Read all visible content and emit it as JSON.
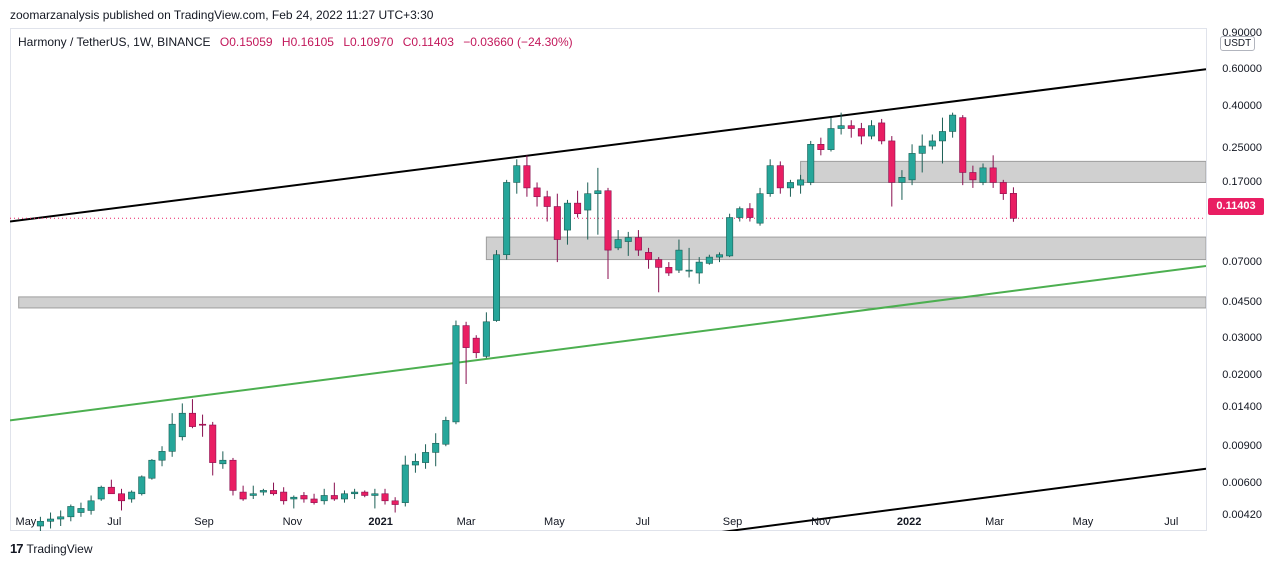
{
  "header": {
    "published_by": "zoomarzanalysis published on TradingView.com, Feb 24, 2022 11:27 UTC+3:30"
  },
  "legend": {
    "symbol": "Harmony / TetherUS, 1W, BINANCE",
    "open": "O0.15059",
    "high": "H0.16105",
    "low": "L0.10970",
    "close": "C0.11403",
    "change": "−0.03660 (−24.30%)"
  },
  "price_axis": {
    "unit": "USDT",
    "ticks": [
      "0.90000",
      "0.60000",
      "0.40000",
      "0.25000",
      "0.17000",
      "0.07000",
      "0.04500",
      "0.03000",
      "0.02000",
      "0.01400",
      "0.00900",
      "0.00600",
      "0.00420"
    ],
    "last_price": "0.11403"
  },
  "time_axis": {
    "ticks": [
      {
        "label": "May",
        "bold": false
      },
      {
        "label": "Jul",
        "bold": false
      },
      {
        "label": "Sep",
        "bold": false
      },
      {
        "label": "Nov",
        "bold": false
      },
      {
        "label": "2021",
        "bold": true
      },
      {
        "label": "Mar",
        "bold": false
      },
      {
        "label": "May",
        "bold": false
      },
      {
        "label": "Jul",
        "bold": false
      },
      {
        "label": "Sep",
        "bold": false
      },
      {
        "label": "Nov",
        "bold": false
      },
      {
        "label": "2022",
        "bold": true
      },
      {
        "label": "Mar",
        "bold": false
      },
      {
        "label": "May",
        "bold": false
      },
      {
        "label": "Jul",
        "bold": false
      }
    ]
  },
  "brand": {
    "name": "TradingView"
  },
  "colors": {
    "up": "#26a69a",
    "down": "#e91e63",
    "zone": "#c8c8c8",
    "support_line": "#4caf50",
    "channel": "#000000",
    "last_price": "#e91e63"
  },
  "chart_data": {
    "type": "candlestick",
    "scale": "log",
    "ylim": [
      0.0035,
      0.95
    ],
    "xlim": [
      "2020-04-20",
      "2022-07-25"
    ],
    "series": [
      {
        "values": [
          {
            "d": "2020-05-11",
            "o": 0.0037,
            "h": 0.0041,
            "l": 0.0035,
            "c": 0.0039
          },
          {
            "d": "2020-05-18",
            "o": 0.0039,
            "h": 0.0043,
            "l": 0.0036,
            "c": 0.004
          },
          {
            "d": "2020-05-25",
            "o": 0.004,
            "h": 0.0044,
            "l": 0.0037,
            "c": 0.0041
          },
          {
            "d": "2020-06-01",
            "o": 0.0041,
            "h": 0.0047,
            "l": 0.0039,
            "c": 0.0046
          },
          {
            "d": "2020-06-08",
            "o": 0.0043,
            "h": 0.0048,
            "l": 0.0041,
            "c": 0.0045
          },
          {
            "d": "2020-06-15",
            "o": 0.0044,
            "h": 0.0052,
            "l": 0.0042,
            "c": 0.0049
          },
          {
            "d": "2020-06-22",
            "o": 0.005,
            "h": 0.0058,
            "l": 0.0049,
            "c": 0.0057
          },
          {
            "d": "2020-06-29",
            "o": 0.0057,
            "h": 0.0062,
            "l": 0.0053,
            "c": 0.0053
          },
          {
            "d": "2020-07-06",
            "o": 0.0053,
            "h": 0.0056,
            "l": 0.0044,
            "c": 0.0049
          },
          {
            "d": "2020-07-13",
            "o": 0.005,
            "h": 0.0055,
            "l": 0.0048,
            "c": 0.0054
          },
          {
            "d": "2020-07-20",
            "o": 0.0053,
            "h": 0.0065,
            "l": 0.0052,
            "c": 0.0064
          },
          {
            "d": "2020-07-27",
            "o": 0.0063,
            "h": 0.0078,
            "l": 0.0062,
            "c": 0.0077
          },
          {
            "d": "2020-08-03",
            "o": 0.0077,
            "h": 0.009,
            "l": 0.0072,
            "c": 0.0085
          },
          {
            "d": "2020-08-10",
            "o": 0.0085,
            "h": 0.013,
            "l": 0.008,
            "c": 0.0115
          },
          {
            "d": "2020-08-17",
            "o": 0.01,
            "h": 0.0145,
            "l": 0.0096,
            "c": 0.013
          },
          {
            "d": "2020-08-24",
            "o": 0.013,
            "h": 0.0152,
            "l": 0.011,
            "c": 0.0112
          },
          {
            "d": "2020-08-31",
            "o": 0.0115,
            "h": 0.0128,
            "l": 0.01,
            "c": 0.0114
          },
          {
            "d": "2020-09-07",
            "o": 0.0114,
            "h": 0.0118,
            "l": 0.0065,
            "c": 0.0075
          },
          {
            "d": "2020-09-14",
            "o": 0.0074,
            "h": 0.0085,
            "l": 0.007,
            "c": 0.0077
          },
          {
            "d": "2020-09-21",
            "o": 0.0077,
            "h": 0.0079,
            "l": 0.0052,
            "c": 0.0055
          },
          {
            "d": "2020-09-28",
            "o": 0.0054,
            "h": 0.0058,
            "l": 0.0049,
            "c": 0.005
          },
          {
            "d": "2020-10-05",
            "o": 0.0052,
            "h": 0.0058,
            "l": 0.005,
            "c": 0.0053
          },
          {
            "d": "2020-10-12",
            "o": 0.0054,
            "h": 0.0056,
            "l": 0.0052,
            "c": 0.0055
          },
          {
            "d": "2020-10-19",
            "o": 0.0055,
            "h": 0.006,
            "l": 0.0052,
            "c": 0.0053
          },
          {
            "d": "2020-10-26",
            "o": 0.0054,
            "h": 0.0057,
            "l": 0.0047,
            "c": 0.0049
          },
          {
            "d": "2020-11-02",
            "o": 0.005,
            "h": 0.0052,
            "l": 0.0045,
            "c": 0.0051
          },
          {
            "d": "2020-11-09",
            "o": 0.0052,
            "h": 0.0054,
            "l": 0.0048,
            "c": 0.005
          },
          {
            "d": "2020-11-16",
            "o": 0.005,
            "h": 0.0053,
            "l": 0.0047,
            "c": 0.0048
          },
          {
            "d": "2020-11-23",
            "o": 0.0049,
            "h": 0.0056,
            "l": 0.0047,
            "c": 0.0052
          },
          {
            "d": "2020-11-30",
            "o": 0.0052,
            "h": 0.006,
            "l": 0.0049,
            "c": 0.005
          },
          {
            "d": "2020-12-07",
            "o": 0.005,
            "h": 0.0055,
            "l": 0.0048,
            "c": 0.0053
          },
          {
            "d": "2020-12-14",
            "o": 0.0053,
            "h": 0.0056,
            "l": 0.005,
            "c": 0.0054
          },
          {
            "d": "2020-12-21",
            "o": 0.0054,
            "h": 0.0055,
            "l": 0.0051,
            "c": 0.0052
          },
          {
            "d": "2020-12-28",
            "o": 0.0052,
            "h": 0.0056,
            "l": 0.0045,
            "c": 0.0053
          },
          {
            "d": "2021-01-04",
            "o": 0.0053,
            "h": 0.0056,
            "l": 0.0047,
            "c": 0.0049
          },
          {
            "d": "2021-01-11",
            "o": 0.0049,
            "h": 0.0051,
            "l": 0.0043,
            "c": 0.0047
          },
          {
            "d": "2021-01-18",
            "o": 0.0048,
            "h": 0.0081,
            "l": 0.0046,
            "c": 0.0073
          },
          {
            "d": "2021-01-25",
            "o": 0.0073,
            "h": 0.0083,
            "l": 0.0067,
            "c": 0.0076
          },
          {
            "d": "2021-02-01",
            "o": 0.0075,
            "h": 0.0092,
            "l": 0.007,
            "c": 0.0084
          },
          {
            "d": "2021-02-08",
            "o": 0.0084,
            "h": 0.0104,
            "l": 0.0072,
            "c": 0.0093
          },
          {
            "d": "2021-02-15",
            "o": 0.0092,
            "h": 0.0125,
            "l": 0.009,
            "c": 0.012
          },
          {
            "d": "2021-02-22",
            "o": 0.0118,
            "h": 0.0365,
            "l": 0.0115,
            "c": 0.0345
          },
          {
            "d": "2021-03-01",
            "o": 0.0345,
            "h": 0.036,
            "l": 0.018,
            "c": 0.027
          },
          {
            "d": "2021-03-08",
            "o": 0.03,
            "h": 0.031,
            "l": 0.024,
            "c": 0.0255
          },
          {
            "d": "2021-03-15",
            "o": 0.0245,
            "h": 0.04,
            "l": 0.024,
            "c": 0.036
          },
          {
            "d": "2021-03-22",
            "o": 0.0365,
            "h": 0.08,
            "l": 0.036,
            "c": 0.076
          },
          {
            "d": "2021-03-29",
            "o": 0.076,
            "h": 0.175,
            "l": 0.072,
            "c": 0.17
          },
          {
            "d": "2021-04-05",
            "o": 0.17,
            "h": 0.22,
            "l": 0.15,
            "c": 0.205
          },
          {
            "d": "2021-04-12",
            "o": 0.205,
            "h": 0.23,
            "l": 0.145,
            "c": 0.16
          },
          {
            "d": "2021-04-19",
            "o": 0.16,
            "h": 0.17,
            "l": 0.13,
            "c": 0.145
          },
          {
            "d": "2021-04-26",
            "o": 0.145,
            "h": 0.155,
            "l": 0.11,
            "c": 0.13
          },
          {
            "d": "2021-05-03",
            "o": 0.13,
            "h": 0.15,
            "l": 0.07,
            "c": 0.09
          },
          {
            "d": "2021-05-10",
            "o": 0.1,
            "h": 0.14,
            "l": 0.085,
            "c": 0.135
          },
          {
            "d": "2021-05-17",
            "o": 0.135,
            "h": 0.155,
            "l": 0.115,
            "c": 0.12
          },
          {
            "d": "2021-05-24",
            "o": 0.125,
            "h": 0.17,
            "l": 0.09,
            "c": 0.15
          },
          {
            "d": "2021-05-31",
            "o": 0.15,
            "h": 0.2,
            "l": 0.095,
            "c": 0.155
          },
          {
            "d": "2021-06-07",
            "o": 0.155,
            "h": 0.16,
            "l": 0.058,
            "c": 0.08
          },
          {
            "d": "2021-06-14",
            "o": 0.082,
            "h": 0.1,
            "l": 0.08,
            "c": 0.09
          },
          {
            "d": "2021-06-21",
            "o": 0.088,
            "h": 0.098,
            "l": 0.075,
            "c": 0.092
          },
          {
            "d": "2021-06-28",
            "o": 0.092,
            "h": 0.1,
            "l": 0.075,
            "c": 0.08
          },
          {
            "d": "2021-07-05",
            "o": 0.078,
            "h": 0.082,
            "l": 0.065,
            "c": 0.072
          },
          {
            "d": "2021-07-12",
            "o": 0.072,
            "h": 0.074,
            "l": 0.05,
            "c": 0.066
          },
          {
            "d": "2021-07-19",
            "o": 0.066,
            "h": 0.07,
            "l": 0.06,
            "c": 0.062
          },
          {
            "d": "2021-07-26",
            "o": 0.064,
            "h": 0.09,
            "l": 0.062,
            "c": 0.08
          },
          {
            "d": "2021-08-02",
            "o": 0.064,
            "h": 0.082,
            "l": 0.059,
            "c": 0.064
          },
          {
            "d": "2021-08-09",
            "o": 0.062,
            "h": 0.074,
            "l": 0.055,
            "c": 0.07
          },
          {
            "d": "2021-08-16",
            "o": 0.069,
            "h": 0.076,
            "l": 0.068,
            "c": 0.074
          },
          {
            "d": "2021-08-23",
            "o": 0.074,
            "h": 0.078,
            "l": 0.07,
            "c": 0.076
          },
          {
            "d": "2021-08-30",
            "o": 0.075,
            "h": 0.12,
            "l": 0.074,
            "c": 0.115
          },
          {
            "d": "2021-09-06",
            "o": 0.115,
            "h": 0.13,
            "l": 0.11,
            "c": 0.127
          },
          {
            "d": "2021-09-13",
            "o": 0.127,
            "h": 0.135,
            "l": 0.11,
            "c": 0.115
          },
          {
            "d": "2021-09-20",
            "o": 0.108,
            "h": 0.16,
            "l": 0.105,
            "c": 0.15
          },
          {
            "d": "2021-09-27",
            "o": 0.15,
            "h": 0.22,
            "l": 0.145,
            "c": 0.205
          },
          {
            "d": "2021-10-04",
            "o": 0.205,
            "h": 0.215,
            "l": 0.15,
            "c": 0.16
          },
          {
            "d": "2021-10-11",
            "o": 0.16,
            "h": 0.175,
            "l": 0.145,
            "c": 0.17
          },
          {
            "d": "2021-10-18",
            "o": 0.165,
            "h": 0.185,
            "l": 0.15,
            "c": 0.175
          },
          {
            "d": "2021-10-25",
            "o": 0.17,
            "h": 0.27,
            "l": 0.165,
            "c": 0.26
          },
          {
            "d": "2021-11-01",
            "o": 0.26,
            "h": 0.28,
            "l": 0.23,
            "c": 0.245
          },
          {
            "d": "2021-11-08",
            "o": 0.245,
            "h": 0.35,
            "l": 0.24,
            "c": 0.31
          },
          {
            "d": "2021-11-15",
            "o": 0.31,
            "h": 0.37,
            "l": 0.29,
            "c": 0.32
          },
          {
            "d": "2021-11-22",
            "o": 0.32,
            "h": 0.34,
            "l": 0.28,
            "c": 0.31
          },
          {
            "d": "2021-11-29",
            "o": 0.31,
            "h": 0.33,
            "l": 0.26,
            "c": 0.285
          },
          {
            "d": "2021-12-06",
            "o": 0.285,
            "h": 0.34,
            "l": 0.275,
            "c": 0.32
          },
          {
            "d": "2021-12-13",
            "o": 0.33,
            "h": 0.345,
            "l": 0.26,
            "c": 0.27
          },
          {
            "d": "2021-12-20",
            "o": 0.27,
            "h": 0.285,
            "l": 0.13,
            "c": 0.17
          },
          {
            "d": "2021-12-27",
            "o": 0.17,
            "h": 0.195,
            "l": 0.14,
            "c": 0.18
          },
          {
            "d": "2022-01-03",
            "o": 0.175,
            "h": 0.26,
            "l": 0.165,
            "c": 0.235
          },
          {
            "d": "2022-01-10",
            "o": 0.235,
            "h": 0.29,
            "l": 0.19,
            "c": 0.255
          },
          {
            "d": "2022-01-17",
            "o": 0.255,
            "h": 0.29,
            "l": 0.245,
            "c": 0.27
          },
          {
            "d": "2022-01-24",
            "o": 0.27,
            "h": 0.35,
            "l": 0.21,
            "c": 0.3
          },
          {
            "d": "2022-01-31",
            "o": 0.3,
            "h": 0.37,
            "l": 0.28,
            "c": 0.36
          },
          {
            "d": "2022-02-07",
            "o": 0.35,
            "h": 0.36,
            "l": 0.165,
            "c": 0.19
          },
          {
            "d": "2022-02-14",
            "o": 0.19,
            "h": 0.205,
            "l": 0.16,
            "c": 0.175
          },
          {
            "d": "2022-02-21",
            "o": 0.17,
            "h": 0.21,
            "l": 0.165,
            "c": 0.2
          },
          {
            "d": "2022-02-28",
            "o": 0.2,
            "h": 0.23,
            "l": 0.16,
            "c": 0.17
          },
          {
            "d": "2022-03-07",
            "o": 0.17,
            "h": 0.175,
            "l": 0.14,
            "c": 0.15
          },
          {
            "d": "2022-03-14",
            "o": 0.15059,
            "h": 0.16105,
            "l": 0.1097,
            "c": 0.11403
          }
        ]
      }
    ],
    "zones": [
      {
        "from": "2020-04-26",
        "to": "2022-07-25",
        "low": 0.042,
        "high": 0.0475
      },
      {
        "from": "2021-03-15",
        "to": "2022-07-25",
        "low": 0.072,
        "high": 0.0925
      },
      {
        "from": "2021-10-18",
        "to": "2022-07-25",
        "low": 0.17,
        "high": 0.215
      }
    ],
    "trendlines": [
      {
        "name": "channel-top",
        "color": "#000000",
        "x1": "2020-04-20",
        "y1": 0.11,
        "x2": "2022-07-25",
        "y2": 0.6
      },
      {
        "name": "channel-bottom",
        "color": "#000000",
        "x1": "2021-08-16",
        "y1": 0.0034,
        "x2": "2022-07-25",
        "y2": 0.007
      },
      {
        "name": "support",
        "color": "#4caf50",
        "x1": "2020-04-20",
        "y1": 0.012,
        "x2": "2022-07-25",
        "y2": 0.067
      }
    ],
    "last_price": 0.11403
  }
}
